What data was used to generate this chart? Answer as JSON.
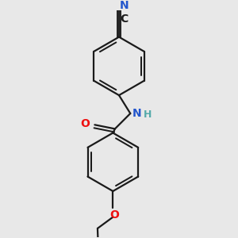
{
  "bg_color": "#e8e8e8",
  "bond_color": "#1a1a1a",
  "lw": 1.6,
  "N_color": "#2255cc",
  "O_color": "#ee1111",
  "NH_N_color": "#2255cc",
  "NH_H_color": "#55aaaa",
  "figsize": [
    3.0,
    3.0
  ],
  "dpi": 100,
  "xlim": [
    -1.8,
    1.8
  ],
  "ylim": [
    -2.8,
    2.8
  ]
}
